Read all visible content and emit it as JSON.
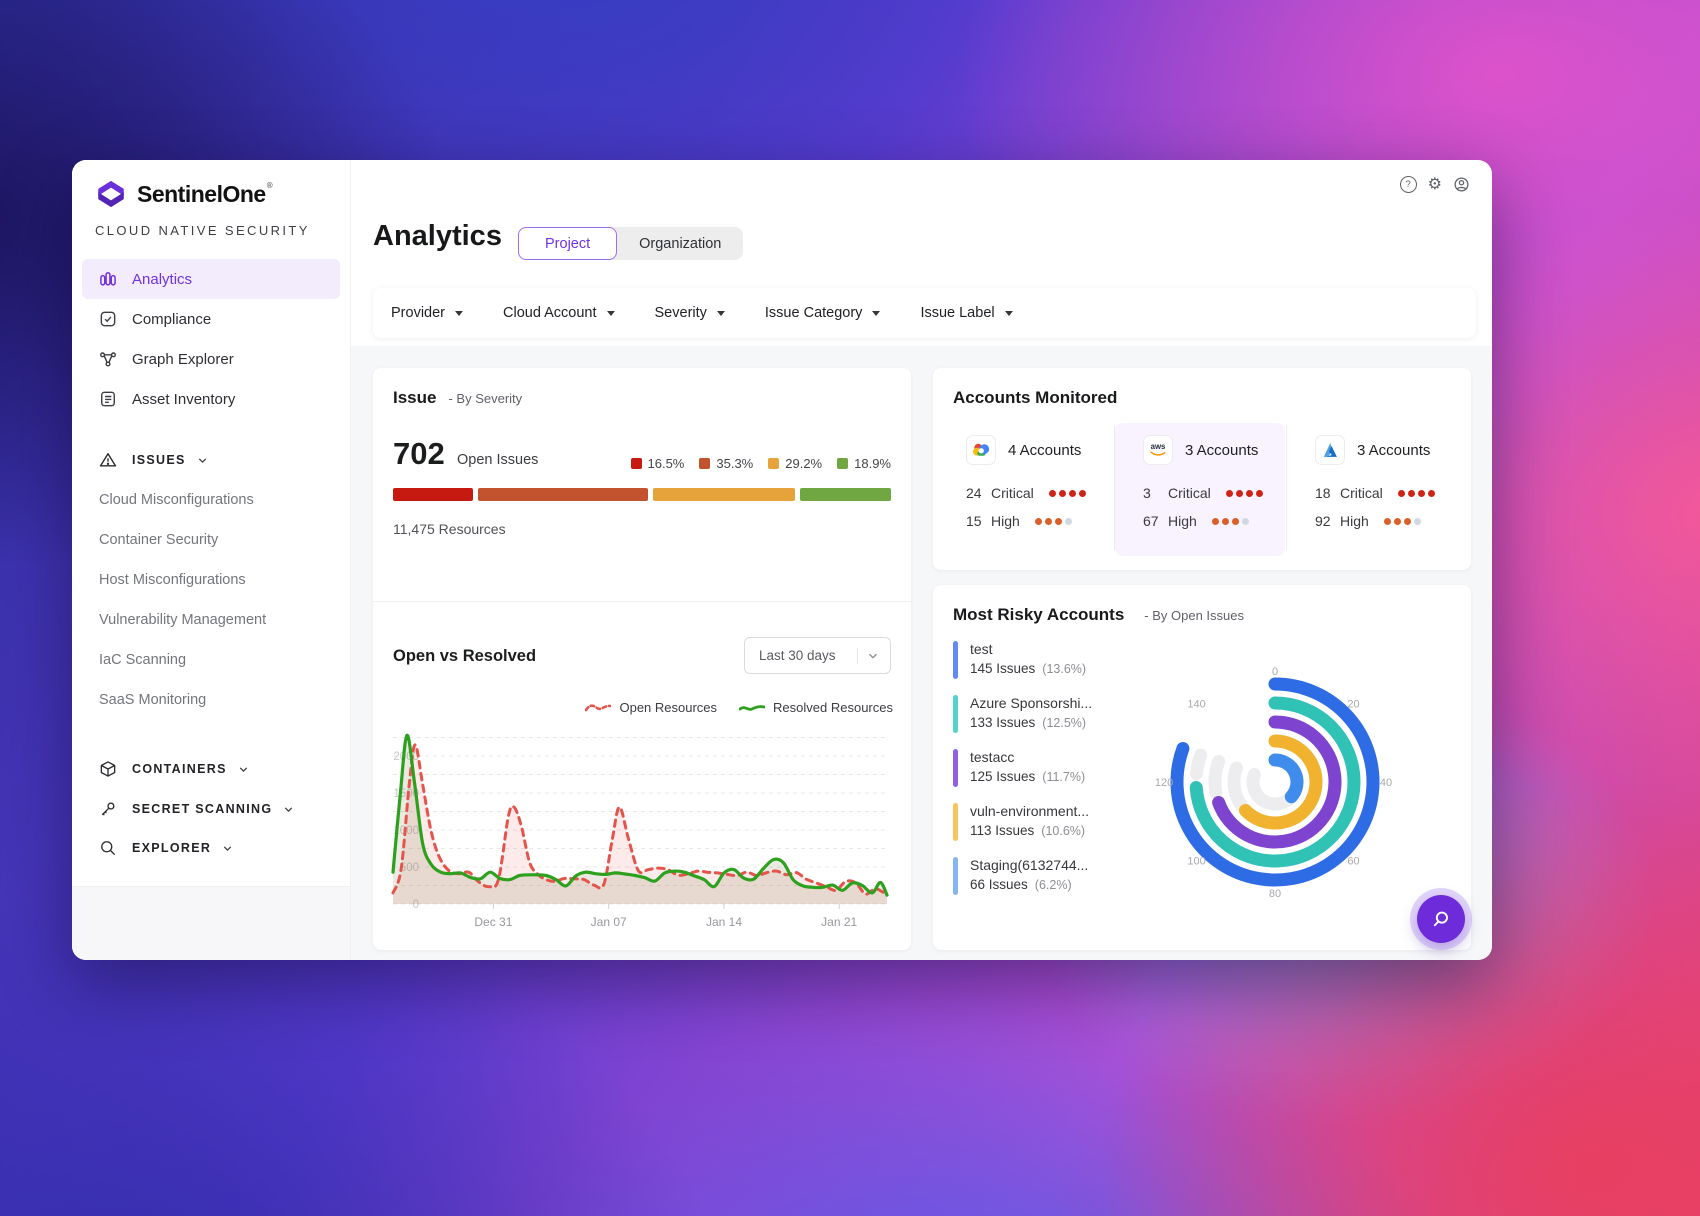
{
  "brand": {
    "name": "SentinelOne",
    "trademark": "®",
    "subtitle": "CLOUD NATIVE SECURITY"
  },
  "top_icons": [
    "help-icon",
    "gear-icon",
    "account-icon"
  ],
  "sidebar": {
    "nav": [
      {
        "label": "Analytics",
        "active": true
      },
      {
        "label": "Compliance",
        "active": false
      },
      {
        "label": "Graph Explorer",
        "active": false
      },
      {
        "label": "Asset Inventory",
        "active": false
      }
    ],
    "issues": {
      "label": "ISSUES",
      "items": [
        "Cloud Misconfigurations",
        "Container Security",
        "Host Misconfigurations",
        "Vulnerability Management",
        "IaC Scanning",
        "SaaS Monitoring"
      ]
    },
    "sections": [
      "CONTAINERS",
      "SECRET SCANNING",
      "EXPLORER"
    ]
  },
  "header": {
    "title": "Analytics",
    "tabs": [
      {
        "label": "Project",
        "active": true
      },
      {
        "label": "Organization",
        "active": false
      }
    ]
  },
  "filters": [
    {
      "label": "Provider"
    },
    {
      "label": "Cloud Account"
    },
    {
      "label": "Severity"
    },
    {
      "label": "Issue Category"
    },
    {
      "label": "Issue Label"
    }
  ],
  "issue_card": {
    "title": "Issue",
    "subtitle": "- By Severity",
    "open_issues_count": "702",
    "open_issues_label": "Open Issues",
    "resources_label": "11,475 Resources",
    "severity_breakdown": [
      {
        "label": "16.5%",
        "value": 16.5,
        "color": "#c61a10"
      },
      {
        "label": "35.3%",
        "value": 35.3,
        "color": "#c2532e"
      },
      {
        "label": "29.2%",
        "value": 29.2,
        "color": "#e7a33b"
      },
      {
        "label": "18.9%",
        "value": 18.9,
        "color": "#70a743"
      }
    ]
  },
  "open_vs_resolved": {
    "title": "Open vs Resolved",
    "range_selector": "Last 30 days",
    "legend": [
      {
        "label": "Open Resources",
        "color": "#e4544b",
        "style": "dashed"
      },
      {
        "label": "Resolved Resources",
        "color": "#2da01e",
        "style": "solid"
      }
    ]
  },
  "chart_data": [
    {
      "type": "line",
      "title": "Open vs Resolved",
      "x_ticks": [
        "Dec 31",
        "Jan 07",
        "Jan 14",
        "Jan 21"
      ],
      "x_tick_days": [
        6.1,
        13.1,
        20.1,
        27.1
      ],
      "y_ticks": [
        0,
        500,
        1000,
        1500,
        2000
      ],
      "ylim": [
        0,
        2400
      ],
      "xlim_days": [
        0,
        30
      ],
      "grid": true,
      "legend_position": "top-right",
      "series": [
        {
          "name": "Open Resources",
          "color": "#e4544b",
          "dashed": true,
          "fill": "rgba(233,88,80,0.12)",
          "points": [
            [
              0,
              150
            ],
            [
              0.5,
              480
            ],
            [
              1,
              1650
            ],
            [
              1.35,
              2150
            ],
            [
              1.8,
              1620
            ],
            [
              2.3,
              1000
            ],
            [
              2.8,
              640
            ],
            [
              3.4,
              450
            ],
            [
              4,
              410
            ],
            [
              4.6,
              430
            ],
            [
              5.2,
              300
            ],
            [
              5.8,
              235
            ],
            [
              6.4,
              330
            ],
            [
              7,
              1180
            ],
            [
              7.35,
              1310
            ],
            [
              7.8,
              1050
            ],
            [
              8.3,
              560
            ],
            [
              8.8,
              400
            ],
            [
              9.3,
              330
            ],
            [
              9.8,
              305
            ],
            [
              10.4,
              345
            ],
            [
              11,
              340
            ],
            [
              11.6,
              330
            ],
            [
              12.2,
              255
            ],
            [
              12.8,
              265
            ],
            [
              13.3,
              850
            ],
            [
              13.75,
              1310
            ],
            [
              14.3,
              880
            ],
            [
              14.9,
              450
            ],
            [
              15.5,
              465
            ],
            [
              16.1,
              485
            ],
            [
              16.7,
              465
            ],
            [
              17.3,
              390
            ],
            [
              17.9,
              405
            ],
            [
              18.5,
              445
            ],
            [
              19.1,
              430
            ],
            [
              19.7,
              420
            ],
            [
              20.3,
              400
            ],
            [
              20.9,
              385
            ],
            [
              21.5,
              430
            ],
            [
              22.1,
              385
            ],
            [
              22.7,
              425
            ],
            [
              23.3,
              445
            ],
            [
              23.9,
              395
            ],
            [
              24.5,
              425
            ],
            [
              25.1,
              335
            ],
            [
              25.7,
              285
            ],
            [
              26.3,
              235
            ],
            [
              26.9,
              185
            ],
            [
              27.5,
              305
            ],
            [
              28.1,
              285
            ],
            [
              28.7,
              135
            ],
            [
              29.3,
              205
            ],
            [
              30,
              125
            ]
          ]
        },
        {
          "name": "Resolved Resources",
          "color": "#2da01e",
          "dashed": false,
          "fill": "rgba(138,138,92,0.18)",
          "points": [
            [
              0,
              430
            ],
            [
              0.45,
              1500
            ],
            [
              0.85,
              2280
            ],
            [
              1.3,
              1650
            ],
            [
              1.8,
              820
            ],
            [
              2.3,
              540
            ],
            [
              2.9,
              430
            ],
            [
              3.5,
              410
            ],
            [
              4.1,
              420
            ],
            [
              4.7,
              360
            ],
            [
              5.3,
              340
            ],
            [
              5.9,
              430
            ],
            [
              6.5,
              345
            ],
            [
              7.1,
              330
            ],
            [
              7.7,
              385
            ],
            [
              8.5,
              395
            ],
            [
              9.3,
              385
            ],
            [
              9.9,
              330
            ],
            [
              10.5,
              245
            ],
            [
              11.1,
              380
            ],
            [
              11.7,
              430
            ],
            [
              12.3,
              410
            ],
            [
              12.9,
              400
            ],
            [
              13.5,
              420
            ],
            [
              14.1,
              405
            ],
            [
              14.7,
              385
            ],
            [
              15.3,
              355
            ],
            [
              15.9,
              310
            ],
            [
              16.5,
              420
            ],
            [
              17.1,
              445
            ],
            [
              17.7,
              430
            ],
            [
              18.3,
              380
            ],
            [
              18.9,
              330
            ],
            [
              19.5,
              235
            ],
            [
              20.1,
              420
            ],
            [
              20.7,
              465
            ],
            [
              21.3,
              350
            ],
            [
              21.9,
              335
            ],
            [
              22.5,
              480
            ],
            [
              23.1,
              600
            ],
            [
              23.7,
              560
            ],
            [
              24.3,
              330
            ],
            [
              24.9,
              245
            ],
            [
              25.5,
              225
            ],
            [
              26.1,
              225
            ],
            [
              26.7,
              255
            ],
            [
              27.3,
              185
            ],
            [
              27.9,
              285
            ],
            [
              28.5,
              250
            ],
            [
              29.1,
              150
            ],
            [
              29.6,
              290
            ],
            [
              30,
              120
            ]
          ]
        }
      ]
    },
    {
      "type": "radial-bar",
      "title": "Most Risky Accounts - By Open Issues",
      "scale_ticks": [
        0,
        20,
        40,
        60,
        80,
        100,
        120,
        140
      ],
      "full_circle_value": 180,
      "track_color": "#ededef",
      "rings": [
        {
          "name": "test",
          "value": 145,
          "color": "#2e6ce6"
        },
        {
          "name": "Azure Sponsorshi...",
          "value": 133,
          "color": "#30c2b5"
        },
        {
          "name": "testacc",
          "value": 125,
          "color": "#7e44cf"
        },
        {
          "name": "vuln-environment...",
          "value": 113,
          "color": "#f1b32f"
        },
        {
          "name": "Staging(6132744...",
          "value": 66,
          "color": "#3f8cec"
        }
      ]
    }
  ],
  "accounts_monitored": {
    "title": "Accounts Monitored",
    "critical_label": "Critical",
    "high_label": "High",
    "severity_dot_colors": {
      "critical": "#ce2418",
      "high": "#db5f28",
      "high_last": "#cfd9e2"
    },
    "providers": [
      {
        "provider": "Google Cloud",
        "icon": "google-cloud-icon",
        "accounts": "4 Accounts",
        "critical": "24",
        "high": "15",
        "highlighted": false
      },
      {
        "provider": "AWS",
        "icon": "aws-icon",
        "accounts": "3 Accounts",
        "critical": "3",
        "high": "67",
        "highlighted": true
      },
      {
        "provider": "Azure",
        "icon": "azure-icon",
        "accounts": "3 Accounts",
        "critical": "18",
        "high": "92",
        "highlighted": false
      }
    ]
  },
  "most_risky": {
    "title": "Most Risky Accounts",
    "subtitle": "- By Open Issues",
    "accounts": [
      {
        "name": "test",
        "issues": "145 Issues",
        "pct": "(13.6%)",
        "bar_color": "#6289f5"
      },
      {
        "name": "Azure Sponsorshi...",
        "issues": "133 Issues",
        "pct": "(12.5%)",
        "bar_color": "#52d5c8"
      },
      {
        "name": "testacc",
        "issues": "125 Issues",
        "pct": "(11.7%)",
        "bar_color": "#9161e2"
      },
      {
        "name": "vuln-environment...",
        "issues": "113 Issues",
        "pct": "(10.6%)",
        "bar_color": "#f6c55f"
      },
      {
        "name": "Staging(6132744...",
        "issues": "66 Issues",
        "pct": "(6.2%)",
        "bar_color": "#85b5f2"
      }
    ]
  },
  "fab": {
    "icon": "search-icon"
  }
}
